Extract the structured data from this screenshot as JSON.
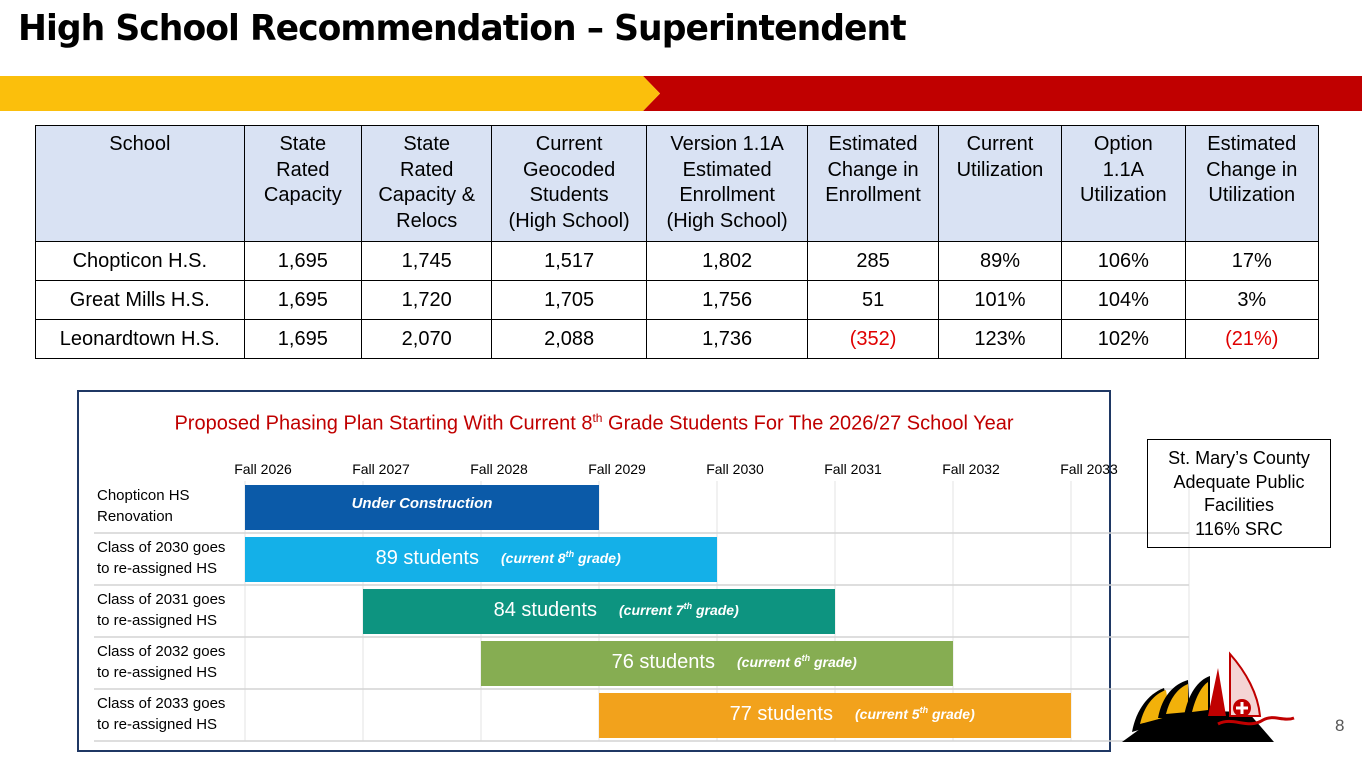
{
  "title": "High School Recommendation – Superintendent",
  "table": {
    "headers": [
      [
        "School"
      ],
      [
        "State",
        "Rated",
        "Capacity"
      ],
      [
        "State",
        "Rated",
        "Capacity &",
        "Relocs"
      ],
      [
        "Current",
        "Geocoded",
        "Students",
        "(High School)"
      ],
      [
        "Version 1.1A",
        "Estimated",
        "Enrollment",
        "(High School)"
      ],
      [
        "Estimated",
        "Change in",
        "Enrollment"
      ],
      [
        "Current",
        "Utilization"
      ],
      [
        "Option",
        "1.1A",
        "Utilization"
      ],
      [
        "Estimated",
        "Change in",
        "Utilization"
      ]
    ],
    "rows": [
      [
        "Chopticon H.S.",
        "1,695",
        "1,745",
        "1,517",
        "1,802",
        "285",
        "89%",
        "106%",
        "17%"
      ],
      [
        "Great Mills H.S.",
        "1,695",
        "1,720",
        "1,705",
        "1,756",
        "51",
        "101%",
        "104%",
        "3%"
      ],
      [
        "Leonardtown H.S.",
        "1,695",
        "2,070",
        "2,088",
        "1,736",
        "(352)",
        "123%",
        "102%",
        "(21%)"
      ]
    ],
    "negative_color": "#e00000"
  },
  "phasing": {
    "title_before": "Proposed Phasing Plan Starting With Current 8",
    "title_sup": "th",
    "title_after": " Grade Students For The 2026/27 School Year",
    "years": [
      "Fall 2026",
      "Fall 2027",
      "Fall 2028",
      "Fall 2029",
      "Fall 2030",
      "Fall 2031",
      "Fall 2032",
      "Fall 2033"
    ],
    "rows": [
      {
        "label1": "Chopticon HS",
        "label2": "Renovation",
        "start": 0,
        "end": 3,
        "count": "",
        "note_before": "Under Construction",
        "note_sup": "",
        "note_after": "",
        "color": "#0b5aa8"
      },
      {
        "label1": "Class of 2030 goes",
        "label2": "to re-assigned HS",
        "start": 0,
        "end": 4,
        "count": "89 students",
        "note_before": "(current 8",
        "note_sup": "th",
        "note_after": " grade)",
        "color": "#14b0e8"
      },
      {
        "label1": "Class of 2031 goes",
        "label2": "to re-assigned HS",
        "start": 1,
        "end": 5,
        "count": "84 students",
        "note_before": "(current 7",
        "note_sup": "th",
        "note_after": " grade)",
        "color": "#0d9480"
      },
      {
        "label1": "Class of 2032 goes",
        "label2": "to re-assigned HS",
        "start": 2,
        "end": 6,
        "count": "76 students",
        "note_before": "(current 6",
        "note_sup": "th",
        "note_after": " grade)",
        "color": "#86ad52"
      },
      {
        "label1": "Class of 2033 goes",
        "label2": "to re-assigned HS",
        "start": 3,
        "end": 7,
        "count": "77 students",
        "note_before": "(current 5",
        "note_sup": "th",
        "note_after": " grade)",
        "color": "#f2a21c"
      }
    ]
  },
  "apf": {
    "lines": [
      "St. Mary’s County",
      "Adequate Public",
      "Facilities",
      "116% SRC"
    ]
  },
  "page_number": "8",
  "colors": {
    "banner_gold": "#fbbf0c",
    "banner_red": "#c00000",
    "header_bg": "#d9e2f3",
    "panel_border": "#1f3864",
    "panel_title": "#c00000"
  },
  "logo": "st-marys-county-public-schools-logo"
}
